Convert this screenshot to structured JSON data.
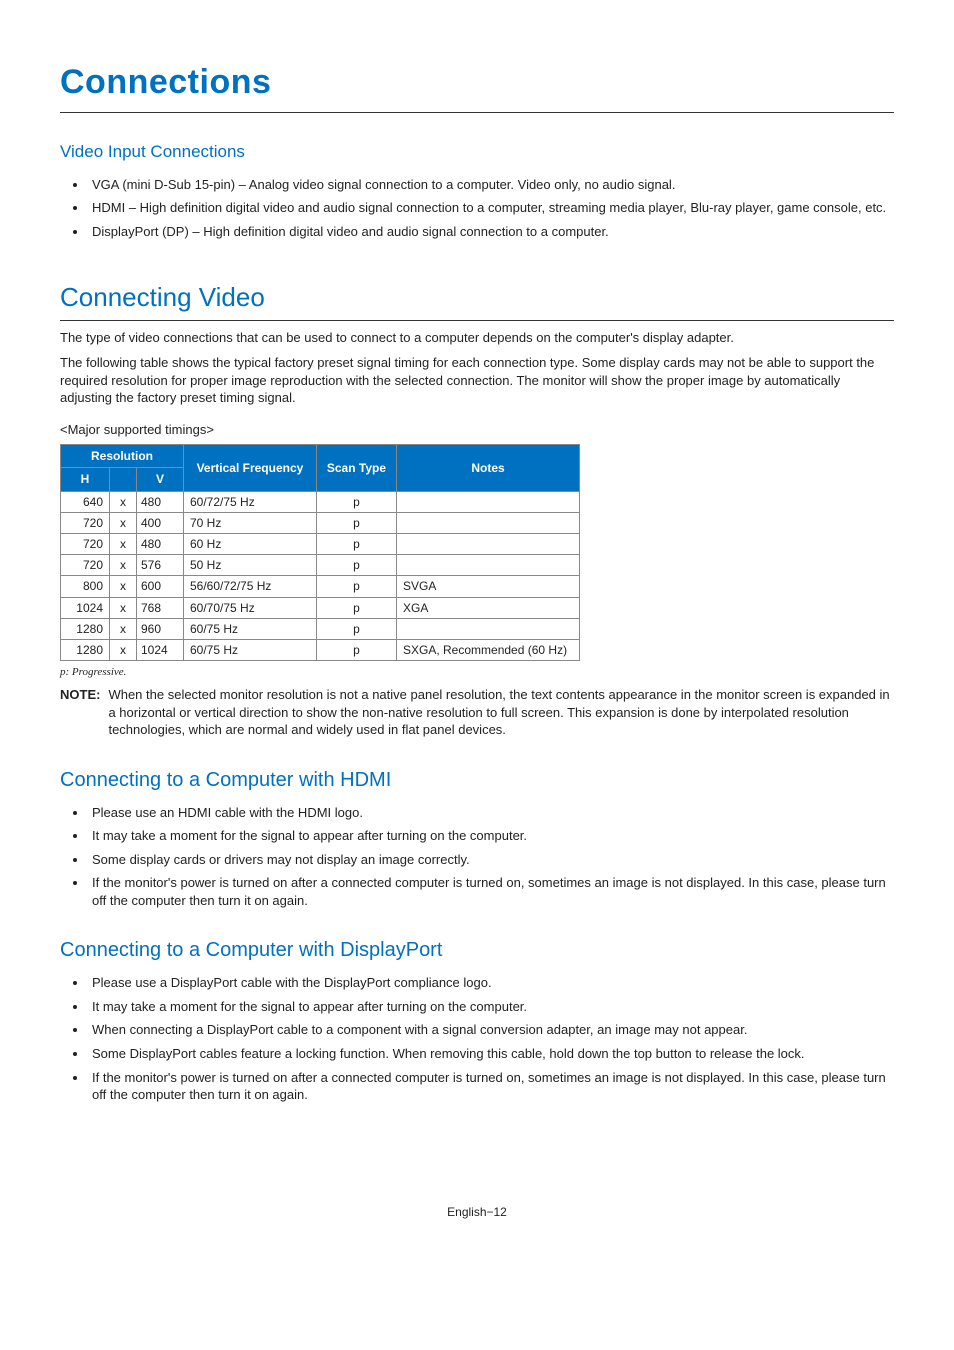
{
  "page": {
    "title": "Connections",
    "footer": "English−12"
  },
  "videoInput": {
    "heading": "Video Input Connections",
    "items": [
      "VGA (mini D-Sub 15-pin) – Analog video signal connection to a computer. Video only, no audio signal.",
      "HDMI – High definition digital video and audio signal connection to a computer, streaming media player, Blu-ray player, game console, etc.",
      "DisplayPort (DP) – High definition digital video and audio signal connection to a computer."
    ]
  },
  "connectingVideo": {
    "heading": "Connecting Video",
    "p1": "The type of video connections that can be used to connect to a computer depends on the computer's display adapter.",
    "p2": "The following table shows the typical factory preset signal timing for each connection type. Some display cards may not be able to support the required resolution for proper image reproduction with the selected connection. The monitor will show the proper image by automatically adjusting the factory preset timing signal.",
    "timingsLabel": "<Major supported timings>",
    "table": {
      "headers": {
        "resolution": "Resolution",
        "h": "H",
        "v": "V",
        "vfreq": "Vertical Frequency",
        "scan": "Scan Type",
        "notes": "Notes"
      },
      "rows": [
        {
          "h": "640",
          "x": "x",
          "v": "480",
          "vf": "60/72/75 Hz",
          "scan": "p",
          "notes": ""
        },
        {
          "h": "720",
          "x": "x",
          "v": "400",
          "vf": "70 Hz",
          "scan": "p",
          "notes": ""
        },
        {
          "h": "720",
          "x": "x",
          "v": "480",
          "vf": "60 Hz",
          "scan": "p",
          "notes": ""
        },
        {
          "h": "720",
          "x": "x",
          "v": "576",
          "vf": "50 Hz",
          "scan": "p",
          "notes": ""
        },
        {
          "h": "800",
          "x": "x",
          "v": "600",
          "vf": "56/60/72/75 Hz",
          "scan": "p",
          "notes": "SVGA"
        },
        {
          "h": "1024",
          "x": "x",
          "v": "768",
          "vf": "60/70/75 Hz",
          "scan": "p",
          "notes": "XGA"
        },
        {
          "h": "1280",
          "x": "x",
          "v": "960",
          "vf": "60/75 Hz",
          "scan": "p",
          "notes": ""
        },
        {
          "h": "1280",
          "x": "x",
          "v": "1024",
          "vf": "60/75 Hz",
          "scan": "p",
          "notes": "SXGA, Recommended (60 Hz)"
        }
      ]
    },
    "footnote": "p:   Progressive.",
    "noteLabel": "NOTE:",
    "noteBody": "When the selected monitor resolution is not a native panel resolution, the text contents appearance in the monitor screen is expanded in a horizontal or vertical direction to show the non-native resolution to full screen. This expansion is done by interpolated resolution technologies, which are normal and widely used in flat panel devices."
  },
  "hdmi": {
    "heading": "Connecting to a Computer with HDMI",
    "items": [
      "Please use an HDMI cable with the HDMI logo.",
      "It may take a moment for the signal to appear after turning on the computer.",
      "Some display cards or drivers may not display an image correctly.",
      "If the monitor's power is turned on after a connected computer is turned on, sometimes an image is not displayed. In this case, please turn off the computer then turn it on again."
    ]
  },
  "dp": {
    "heading": "Connecting to a Computer with DisplayPort",
    "items": [
      "Please use a DisplayPort cable with the DisplayPort compliance logo.",
      "It may take a moment for the signal to appear after turning on the computer.",
      "When connecting a DisplayPort cable to a component with a signal conversion adapter, an image may not appear.",
      "Some DisplayPort cables feature a locking function. When removing this cable, hold down the top button to release the lock.",
      "If the monitor's power is turned on after a connected computer is turned on, sometimes an image is not displayed. In this case, please turn off the computer then turn it on again."
    ]
  }
}
